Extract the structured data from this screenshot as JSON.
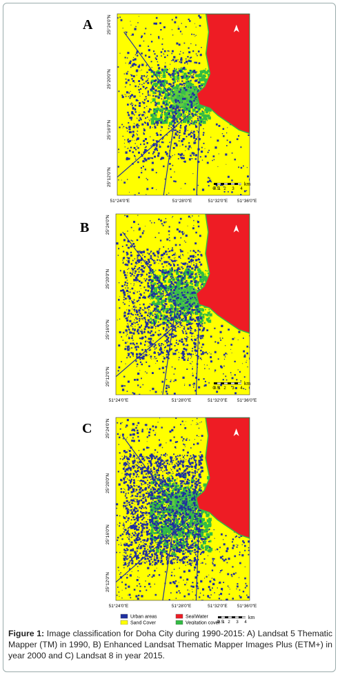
{
  "panels": [
    {
      "label": "A",
      "lat_labels": [
        "25°24'0\"N",
        "25°20'0\"N",
        "25°16'0\"N",
        "25°12'0\"N"
      ],
      "lon_labels": [
        "51°24'0\"E",
        "51°28'0\"E",
        "51°32'0\"E",
        "51°36'0\"E"
      ],
      "scale": {
        "ticks": [
          "0",
          "0.5",
          "1",
          "2",
          "3",
          "4"
        ],
        "unit": "km"
      }
    },
    {
      "label": "B",
      "lat_labels": [
        "25°24'0\"N",
        "25°20'0\"N",
        "25°16'0\"N",
        "25°12'0\"N"
      ],
      "lon_labels": [
        "51°24'0\"E",
        "51°28'0\"E",
        "51°32'0\"E",
        "51°36'0\"E"
      ],
      "scale": {
        "ticks": [
          "0",
          "0.5",
          "1",
          "2",
          "3",
          "4"
        ],
        "unit": "km"
      }
    },
    {
      "label": "C",
      "lat_labels": [
        "25°24'0\"N",
        "25°20'0\"N",
        "25°16'0\"N",
        "25°12'0\"N"
      ],
      "lon_labels": [
        "51°24'0\"E",
        "51°28'0\"E",
        "51°32'0\"E",
        "51°36'0\"E"
      ],
      "scale": {
        "ticks": [
          "0",
          "0.5",
          "1",
          "2",
          "3",
          "4"
        ],
        "unit": "km"
      }
    }
  ],
  "legend": [
    "Urban areas",
    "Sand Cover",
    "Sea\\Water",
    "Vegitation cover"
  ],
  "caption": {
    "label": "Figure 1:",
    "text": "Image classification for Doha City during 1990-2015: A) Landsat 5 Thematic Mapper (TM) in 1990, B) Enhanced Landsat Thematic Mapper Images Plus (ETM+) in year 2000 and C) Landsat 8 in year 2015."
  }
}
